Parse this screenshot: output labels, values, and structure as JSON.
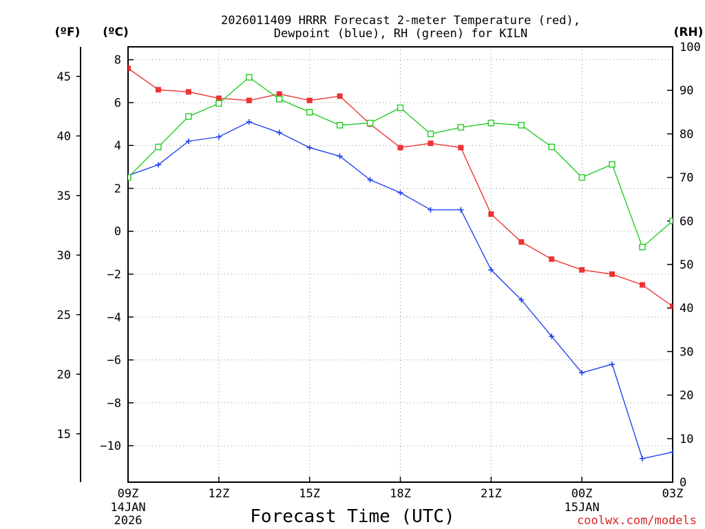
{
  "chart_data": {
    "type": "line",
    "title_lines": [
      "2026011409 HRRR Forecast 2-meter Temperature (red),",
      "Dewpoint (blue), RH (green) for KILN"
    ],
    "xlabel": "Forecast Time (UTC)",
    "watermark": "coolwx.com/models",
    "x_hours": [
      0,
      1,
      2,
      3,
      4,
      5,
      6,
      7,
      8,
      9,
      10,
      11,
      12,
      13,
      14,
      15,
      16,
      17,
      18
    ],
    "x_range": [
      0,
      18
    ],
    "x_ticks": [
      {
        "hour": 0,
        "label": "09Z",
        "sub": [
          "14JAN",
          "2026"
        ]
      },
      {
        "hour": 3,
        "label": "12Z",
        "sub": []
      },
      {
        "hour": 6,
        "label": "15Z",
        "sub": []
      },
      {
        "hour": 9,
        "label": "18Z",
        "sub": []
      },
      {
        "hour": 12,
        "label": "21Z",
        "sub": []
      },
      {
        "hour": 15,
        "label": "00Z",
        "sub": [
          "15JAN"
        ]
      },
      {
        "hour": 18,
        "label": "03Z",
        "sub": []
      }
    ],
    "left_axis_c": {
      "unit": "(ºC)",
      "range": [
        -11.7,
        8.6
      ],
      "ticks": [
        8,
        6,
        4,
        2,
        0,
        -2,
        -4,
        -6,
        -8,
        -10
      ],
      "tick_labels": [
        "8",
        "6",
        "4",
        "2",
        "0",
        "−2",
        "−4",
        "−6",
        "−8",
        "−10"
      ]
    },
    "left_axis_f": {
      "unit": "(ºF)",
      "ticks": [
        45,
        40,
        35,
        30,
        25,
        20,
        15
      ],
      "tick_labels": [
        "45",
        "40",
        "35",
        "30",
        "25",
        "20",
        "15"
      ]
    },
    "right_axis_rh": {
      "unit": "(RH)",
      "range": [
        0,
        100
      ],
      "ticks": [
        100,
        90,
        80,
        70,
        60,
        50,
        40,
        30,
        20,
        10,
        0
      ],
      "tick_labels": [
        "100",
        "90",
        "80",
        "70",
        "60",
        "50",
        "40",
        "30",
        "20",
        "10",
        "0"
      ]
    },
    "series": [
      {
        "name": "Temperature",
        "axis": "c",
        "color": "#ee3333",
        "marker": "filled-square",
        "values": [
          7.6,
          6.6,
          6.5,
          6.2,
          6.1,
          6.4,
          6.1,
          6.3,
          5.0,
          3.9,
          4.1,
          3.9,
          0.8,
          -0.5,
          -1.3,
          -1.8,
          -2.0,
          -2.5,
          -3.5
        ]
      },
      {
        "name": "Dewpoint",
        "axis": "c",
        "color": "#2244ee",
        "marker": "plus",
        "values": [
          2.6,
          3.1,
          4.2,
          4.4,
          5.1,
          4.6,
          3.9,
          3.5,
          2.4,
          1.8,
          1.0,
          1.0,
          -1.8,
          -3.2,
          -4.9,
          -6.6,
          -6.2,
          -10.6,
          -10.3
        ]
      },
      {
        "name": "RH",
        "axis": "rh",
        "color": "#22cc22",
        "marker": "open-square",
        "values": [
          70,
          77,
          84,
          87,
          93,
          88,
          85,
          82,
          82.5,
          86,
          80,
          81.5,
          82.5,
          82,
          77,
          70,
          73,
          54,
          60
        ]
      }
    ]
  }
}
